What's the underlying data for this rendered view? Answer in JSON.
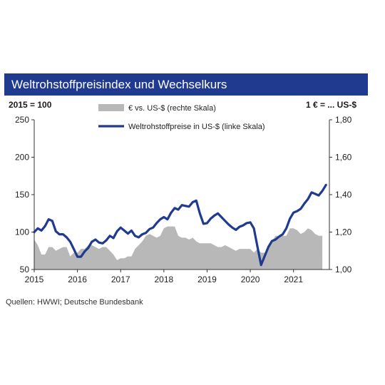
{
  "title": "Weltrohstoffpreisindex und Wechselkurs",
  "left_unit": "2015 = 100",
  "right_unit": "1 € = ... US-$",
  "source": "Quellen: HWWI; Deutsche Bundesbank",
  "colors": {
    "title_bg": "#1f3a8f",
    "area": "#b8b8b8",
    "line": "#1f3a8f"
  },
  "chart_data": {
    "type": "line",
    "title": "Weltrohstoffpreisindex und Wechselkurs",
    "x_ticks": [
      "2015",
      "2016",
      "2017",
      "2018",
      "2019",
      "2020",
      "2021"
    ],
    "y_left": {
      "ticks": [
        "250",
        "200",
        "150",
        "100",
        "50"
      ],
      "ylim": [
        50,
        250
      ]
    },
    "y_right": {
      "ticks": [
        "1,80",
        "1,60",
        "1,40",
        "1,20",
        "1,00"
      ],
      "ylim": [
        1.0,
        1.8
      ]
    },
    "legend": {
      "placement": "top"
    },
    "grid": false,
    "series": [
      {
        "name": "€ vs. US-$ (rechte Skala)",
        "type": "area",
        "axis": "right",
        "x": [
          2015.0,
          2015.083,
          2015.167,
          2015.25,
          2015.333,
          2015.417,
          2015.5,
          2015.583,
          2015.667,
          2015.75,
          2015.833,
          2015.917,
          2016.0,
          2016.083,
          2016.167,
          2016.25,
          2016.333,
          2016.417,
          2016.5,
          2016.583,
          2016.667,
          2016.75,
          2016.833,
          2016.917,
          2017.0,
          2017.083,
          2017.167,
          2017.25,
          2017.333,
          2017.417,
          2017.5,
          2017.583,
          2017.667,
          2017.75,
          2017.833,
          2017.917,
          2018.0,
          2018.083,
          2018.167,
          2018.25,
          2018.333,
          2018.417,
          2018.5,
          2018.583,
          2018.667,
          2018.75,
          2018.833,
          2018.917,
          2019.0,
          2019.083,
          2019.167,
          2019.25,
          2019.333,
          2019.417,
          2019.5,
          2019.583,
          2019.667,
          2019.75,
          2019.833,
          2019.917,
          2020.0,
          2020.083,
          2020.167,
          2020.25,
          2020.333,
          2020.417,
          2020.5,
          2020.583,
          2020.667,
          2020.75,
          2020.833,
          2020.917,
          2021.0,
          2021.083,
          2021.167,
          2021.25,
          2021.333,
          2021.417,
          2021.5,
          2021.583,
          2021.667
        ],
        "values": [
          1.16,
          1.13,
          1.08,
          1.08,
          1.12,
          1.12,
          1.1,
          1.11,
          1.12,
          1.12,
          1.07,
          1.09,
          1.09,
          1.11,
          1.11,
          1.13,
          1.13,
          1.12,
          1.11,
          1.12,
          1.12,
          1.1,
          1.08,
          1.05,
          1.06,
          1.06,
          1.07,
          1.07,
          1.11,
          1.13,
          1.15,
          1.18,
          1.19,
          1.18,
          1.17,
          1.18,
          1.22,
          1.23,
          1.23,
          1.23,
          1.18,
          1.17,
          1.17,
          1.16,
          1.17,
          1.15,
          1.14,
          1.14,
          1.14,
          1.14,
          1.13,
          1.12,
          1.12,
          1.13,
          1.12,
          1.11,
          1.1,
          1.11,
          1.11,
          1.11,
          1.11,
          1.09,
          1.11,
          1.09,
          1.09,
          1.12,
          1.15,
          1.18,
          1.18,
          1.18,
          1.18,
          1.22,
          1.22,
          1.21,
          1.19,
          1.2,
          1.22,
          1.21,
          1.19,
          1.18,
          1.18
        ]
      },
      {
        "name": "Weltrohstoffpreise in US-$ (linke Skala)",
        "type": "line",
        "axis": "left",
        "x": [
          2015.0,
          2015.083,
          2015.167,
          2015.25,
          2015.333,
          2015.417,
          2015.5,
          2015.583,
          2015.667,
          2015.75,
          2015.833,
          2015.917,
          2016.0,
          2016.083,
          2016.167,
          2016.25,
          2016.333,
          2016.417,
          2016.5,
          2016.583,
          2016.667,
          2016.75,
          2016.833,
          2016.917,
          2017.0,
          2017.083,
          2017.167,
          2017.25,
          2017.333,
          2017.417,
          2017.5,
          2017.583,
          2017.667,
          2017.75,
          2017.833,
          2017.917,
          2018.0,
          2018.083,
          2018.167,
          2018.25,
          2018.333,
          2018.417,
          2018.5,
          2018.583,
          2018.667,
          2018.75,
          2018.833,
          2018.917,
          2019.0,
          2019.083,
          2019.167,
          2019.25,
          2019.333,
          2019.417,
          2019.5,
          2019.583,
          2019.667,
          2019.75,
          2019.833,
          2019.917,
          2020.0,
          2020.083,
          2020.167,
          2020.25,
          2020.333,
          2020.417,
          2020.5,
          2020.583,
          2020.667,
          2020.75,
          2020.833,
          2020.917,
          2021.0,
          2021.083,
          2021.167,
          2021.25,
          2021.333,
          2021.417,
          2021.5,
          2021.583,
          2021.667,
          2021.75
        ],
        "values": [
          100,
          105,
          102,
          108,
          117,
          115,
          101,
          97,
          97,
          93,
          87,
          77,
          67,
          67,
          74,
          79,
          87,
          90,
          86,
          85,
          89,
          95,
          92,
          101,
          106,
          102,
          98,
          102,
          95,
          93,
          97,
          99,
          104,
          106,
          112,
          117,
          120,
          117,
          126,
          132,
          130,
          136,
          135,
          134,
          140,
          142,
          125,
          111,
          112,
          118,
          122,
          125,
          120,
          115,
          110,
          106,
          103,
          107,
          109,
          112,
          113,
          105,
          80,
          56,
          68,
          80,
          88,
          90,
          94,
          97,
          105,
          118,
          126,
          128,
          131,
          138,
          144,
          153,
          151,
          149,
          155,
          163
        ]
      }
    ]
  }
}
